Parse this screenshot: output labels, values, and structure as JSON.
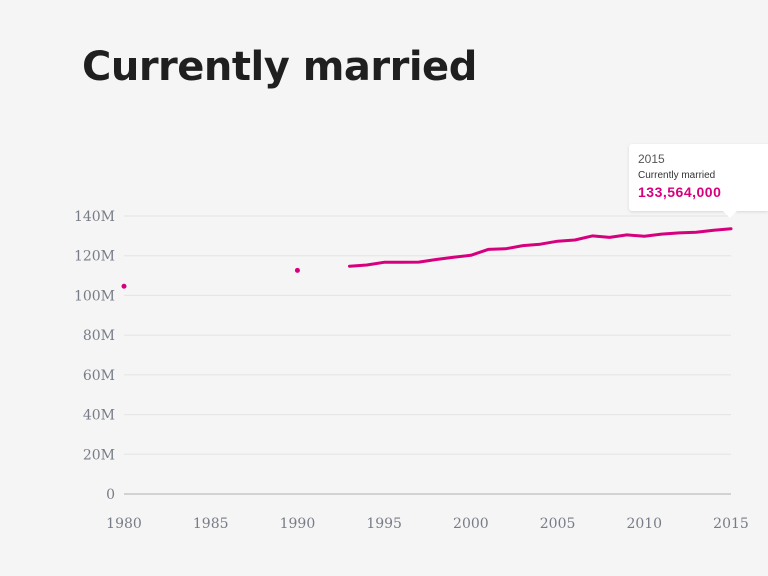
{
  "title": "Currently married",
  "tooltip": {
    "year": "2015",
    "series": "Currently married",
    "value": "133,564,000"
  },
  "colors": {
    "series": "#d6007f",
    "grid": "#e4e4e4",
    "axis": "#c7c7c7",
    "tick_text": "#777c86"
  },
  "chart_data": {
    "type": "line",
    "title": "Currently married",
    "xlabel": "",
    "ylabel": "",
    "xlim": [
      1980,
      2015
    ],
    "ylim": [
      0,
      140000000
    ],
    "x_ticks": [
      1980,
      1985,
      1990,
      1995,
      2000,
      2005,
      2010,
      2015
    ],
    "x_tick_labels": [
      "1980",
      "1985",
      "1990",
      "1995",
      "2000",
      "2005",
      "2010",
      "2015"
    ],
    "y_ticks": [
      0,
      20000000,
      40000000,
      60000000,
      80000000,
      100000000,
      120000000,
      140000000
    ],
    "y_tick_labels": [
      "0",
      "20M",
      "40M",
      "60M",
      "80M",
      "100M",
      "120M",
      "140M"
    ],
    "grid": true,
    "series": [
      {
        "name": "Currently married",
        "isolated_points": [
          {
            "x": 1980,
            "y": 104600000
          },
          {
            "x": 1990,
            "y": 112600000
          }
        ],
        "x": [
          1993,
          1994,
          1995,
          1996,
          1997,
          1998,
          1999,
          2000,
          2001,
          2002,
          2003,
          2004,
          2005,
          2006,
          2007,
          2008,
          2009,
          2010,
          2011,
          2012,
          2013,
          2014,
          2015
        ],
        "y": [
          114700000,
          115300000,
          116700000,
          116700000,
          116800000,
          118100000,
          119200000,
          120200000,
          123200000,
          123500000,
          125100000,
          125800000,
          127300000,
          127900000,
          130000000,
          129200000,
          130500000,
          129800000,
          130900000,
          131500000,
          131800000,
          132800000,
          133564000
        ]
      }
    ]
  }
}
